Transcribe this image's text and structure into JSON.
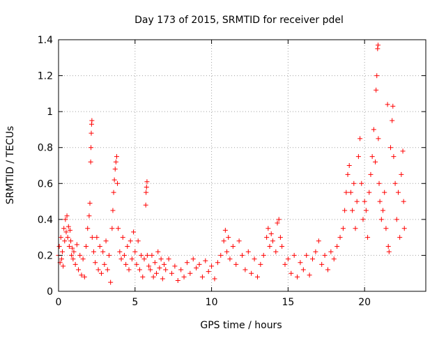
{
  "chart_data": {
    "type": "scatter",
    "title": "Day 173 of 2015, SRMTID for receiver pdel",
    "xlabel": "GPS time / hours",
    "ylabel": "SRMTID / TECUs",
    "xlim": [
      0,
      24
    ],
    "ylim": [
      0,
      1.4
    ],
    "xticks": [
      0,
      5,
      10,
      15,
      20
    ],
    "yticks": [
      0,
      0.2,
      0.4,
      0.6,
      0.8,
      1,
      1.2,
      1.4
    ],
    "xtick_labels": [
      "0",
      "5",
      "10",
      "15",
      "20"
    ],
    "ytick_labels": [
      "0",
      "0.2",
      "0.4",
      "0.6",
      "0.8",
      "1",
      "1.2",
      "1.4"
    ],
    "grid": true,
    "legend": "none",
    "marker": "plus",
    "series": [
      {
        "name": "SRMTID",
        "color": "#ff0000",
        "points": [
          [
            0.0,
            0.2
          ],
          [
            0.05,
            0.25
          ],
          [
            0.1,
            0.16
          ],
          [
            0.15,
            0.3
          ],
          [
            0.2,
            0.18
          ],
          [
            0.25,
            0.22
          ],
          [
            0.3,
            0.14
          ],
          [
            0.35,
            0.35
          ],
          [
            0.4,
            0.28
          ],
          [
            0.45,
            0.4
          ],
          [
            0.5,
            0.33
          ],
          [
            0.55,
            0.42
          ],
          [
            0.6,
            0.3
          ],
          [
            0.65,
            0.36
          ],
          [
            0.7,
            0.25
          ],
          [
            0.75,
            0.34
          ],
          [
            0.8,
            0.28
          ],
          [
            0.85,
            0.2
          ],
          [
            0.9,
            0.24
          ],
          [
            0.95,
            0.18
          ],
          [
            1.0,
            0.22
          ],
          [
            1.1,
            0.15
          ],
          [
            1.2,
            0.26
          ],
          [
            1.3,
            0.12
          ],
          [
            1.4,
            0.2
          ],
          [
            1.5,
            0.09
          ],
          [
            1.6,
            0.18
          ],
          [
            1.7,
            0.08
          ],
          [
            1.8,
            0.25
          ],
          [
            1.9,
            0.35
          ],
          [
            2.0,
            0.42
          ],
          [
            2.05,
            0.49
          ],
          [
            2.1,
            0.72
          ],
          [
            2.12,
            0.8
          ],
          [
            2.14,
            0.88
          ],
          [
            2.16,
            0.93
          ],
          [
            2.18,
            0.95
          ],
          [
            2.2,
            0.3
          ],
          [
            2.3,
            0.22
          ],
          [
            2.4,
            0.16
          ],
          [
            2.5,
            0.3
          ],
          [
            2.6,
            0.12
          ],
          [
            2.7,
            0.25
          ],
          [
            2.8,
            0.1
          ],
          [
            2.9,
            0.22
          ],
          [
            3.0,
            0.15
          ],
          [
            3.1,
            0.28
          ],
          [
            3.2,
            0.12
          ],
          [
            3.3,
            0.2
          ],
          [
            3.4,
            0.05
          ],
          [
            3.5,
            0.35
          ],
          [
            3.55,
            0.45
          ],
          [
            3.6,
            0.55
          ],
          [
            3.65,
            0.62
          ],
          [
            3.7,
            0.68
          ],
          [
            3.75,
            0.72
          ],
          [
            3.8,
            0.75
          ],
          [
            3.85,
            0.6
          ],
          [
            3.9,
            0.35
          ],
          [
            4.0,
            0.22
          ],
          [
            4.1,
            0.18
          ],
          [
            4.2,
            0.3
          ],
          [
            4.3,
            0.2
          ],
          [
            4.4,
            0.15
          ],
          [
            4.5,
            0.25
          ],
          [
            4.6,
            0.12
          ],
          [
            4.7,
            0.28
          ],
          [
            4.8,
            0.18
          ],
          [
            4.9,
            0.33
          ],
          [
            5.0,
            0.22
          ],
          [
            5.1,
            0.15
          ],
          [
            5.2,
            0.28
          ],
          [
            5.3,
            0.12
          ],
          [
            5.4,
            0.2
          ],
          [
            5.5,
            0.08
          ],
          [
            5.6,
            0.18
          ],
          [
            5.7,
            0.48
          ],
          [
            5.72,
            0.55
          ],
          [
            5.75,
            0.58
          ],
          [
            5.78,
            0.61
          ],
          [
            5.8,
            0.2
          ],
          [
            5.9,
            0.14
          ],
          [
            6.0,
            0.12
          ],
          [
            6.1,
            0.2
          ],
          [
            6.2,
            0.08
          ],
          [
            6.3,
            0.16
          ],
          [
            6.4,
            0.1
          ],
          [
            6.5,
            0.22
          ],
          [
            6.6,
            0.13
          ],
          [
            6.7,
            0.18
          ],
          [
            6.8,
            0.07
          ],
          [
            6.9,
            0.15
          ],
          [
            7.0,
            0.12
          ],
          [
            7.2,
            0.18
          ],
          [
            7.4,
            0.1
          ],
          [
            7.6,
            0.14
          ],
          [
            7.8,
            0.06
          ],
          [
            8.0,
            0.12
          ],
          [
            8.2,
            0.08
          ],
          [
            8.4,
            0.16
          ],
          [
            8.6,
            0.1
          ],
          [
            8.8,
            0.18
          ],
          [
            9.0,
            0.13
          ],
          [
            9.2,
            0.15
          ],
          [
            9.4,
            0.08
          ],
          [
            9.6,
            0.17
          ],
          [
            9.8,
            0.11
          ],
          [
            10.0,
            0.14
          ],
          [
            10.2,
            0.07
          ],
          [
            10.4,
            0.16
          ],
          [
            10.6,
            0.2
          ],
          [
            10.8,
            0.28
          ],
          [
            10.9,
            0.34
          ],
          [
            11.0,
            0.22
          ],
          [
            11.1,
            0.3
          ],
          [
            11.2,
            0.18
          ],
          [
            11.4,
            0.25
          ],
          [
            11.6,
            0.15
          ],
          [
            11.8,
            0.28
          ],
          [
            12.0,
            0.2
          ],
          [
            12.2,
            0.12
          ],
          [
            12.4,
            0.22
          ],
          [
            12.6,
            0.1
          ],
          [
            12.8,
            0.18
          ],
          [
            13.0,
            0.08
          ],
          [
            13.2,
            0.15
          ],
          [
            13.4,
            0.2
          ],
          [
            13.6,
            0.3
          ],
          [
            13.7,
            0.35
          ],
          [
            13.8,
            0.25
          ],
          [
            13.9,
            0.32
          ],
          [
            14.0,
            0.28
          ],
          [
            14.2,
            0.22
          ],
          [
            14.3,
            0.38
          ],
          [
            14.4,
            0.4
          ],
          [
            14.5,
            0.3
          ],
          [
            14.6,
            0.25
          ],
          [
            14.8,
            0.15
          ],
          [
            15.0,
            0.18
          ],
          [
            15.2,
            0.1
          ],
          [
            15.4,
            0.2
          ],
          [
            15.6,
            0.08
          ],
          [
            15.8,
            0.16
          ],
          [
            16.0,
            0.12
          ],
          [
            16.2,
            0.2
          ],
          [
            16.4,
            0.09
          ],
          [
            16.6,
            0.18
          ],
          [
            16.8,
            0.22
          ],
          [
            17.0,
            0.28
          ],
          [
            17.2,
            0.15
          ],
          [
            17.4,
            0.2
          ],
          [
            17.6,
            0.12
          ],
          [
            17.8,
            0.22
          ],
          [
            18.0,
            0.18
          ],
          [
            18.2,
            0.25
          ],
          [
            18.4,
            0.3
          ],
          [
            18.6,
            0.35
          ],
          [
            18.7,
            0.45
          ],
          [
            18.8,
            0.55
          ],
          [
            18.9,
            0.65
          ],
          [
            19.0,
            0.7
          ],
          [
            19.1,
            0.55
          ],
          [
            19.2,
            0.45
          ],
          [
            19.3,
            0.6
          ],
          [
            19.4,
            0.35
          ],
          [
            19.5,
            0.5
          ],
          [
            19.6,
            0.75
          ],
          [
            19.7,
            0.85
          ],
          [
            19.8,
            0.6
          ],
          [
            19.9,
            0.4
          ],
          [
            20.0,
            0.5
          ],
          [
            20.1,
            0.45
          ],
          [
            20.2,
            0.3
          ],
          [
            20.3,
            0.55
          ],
          [
            20.4,
            0.65
          ],
          [
            20.5,
            0.75
          ],
          [
            20.6,
            0.9
          ],
          [
            20.7,
            0.72
          ],
          [
            20.75,
            1.12
          ],
          [
            20.8,
            1.2
          ],
          [
            20.85,
            1.35
          ],
          [
            20.88,
            1.37
          ],
          [
            20.9,
            0.85
          ],
          [
            20.95,
            0.6
          ],
          [
            21.0,
            0.5
          ],
          [
            21.1,
            0.4
          ],
          [
            21.2,
            0.45
          ],
          [
            21.3,
            0.55
          ],
          [
            21.4,
            0.35
          ],
          [
            21.5,
            1.04
          ],
          [
            21.55,
            0.25
          ],
          [
            21.6,
            0.22
          ],
          [
            21.7,
            0.8
          ],
          [
            21.8,
            0.95
          ],
          [
            21.85,
            1.03
          ],
          [
            21.9,
            0.75
          ],
          [
            22.0,
            0.6
          ],
          [
            22.1,
            0.4
          ],
          [
            22.2,
            0.55
          ],
          [
            22.3,
            0.3
          ],
          [
            22.4,
            0.65
          ],
          [
            22.5,
            0.78
          ],
          [
            22.55,
            0.5
          ],
          [
            22.6,
            0.35
          ]
        ]
      }
    ]
  }
}
